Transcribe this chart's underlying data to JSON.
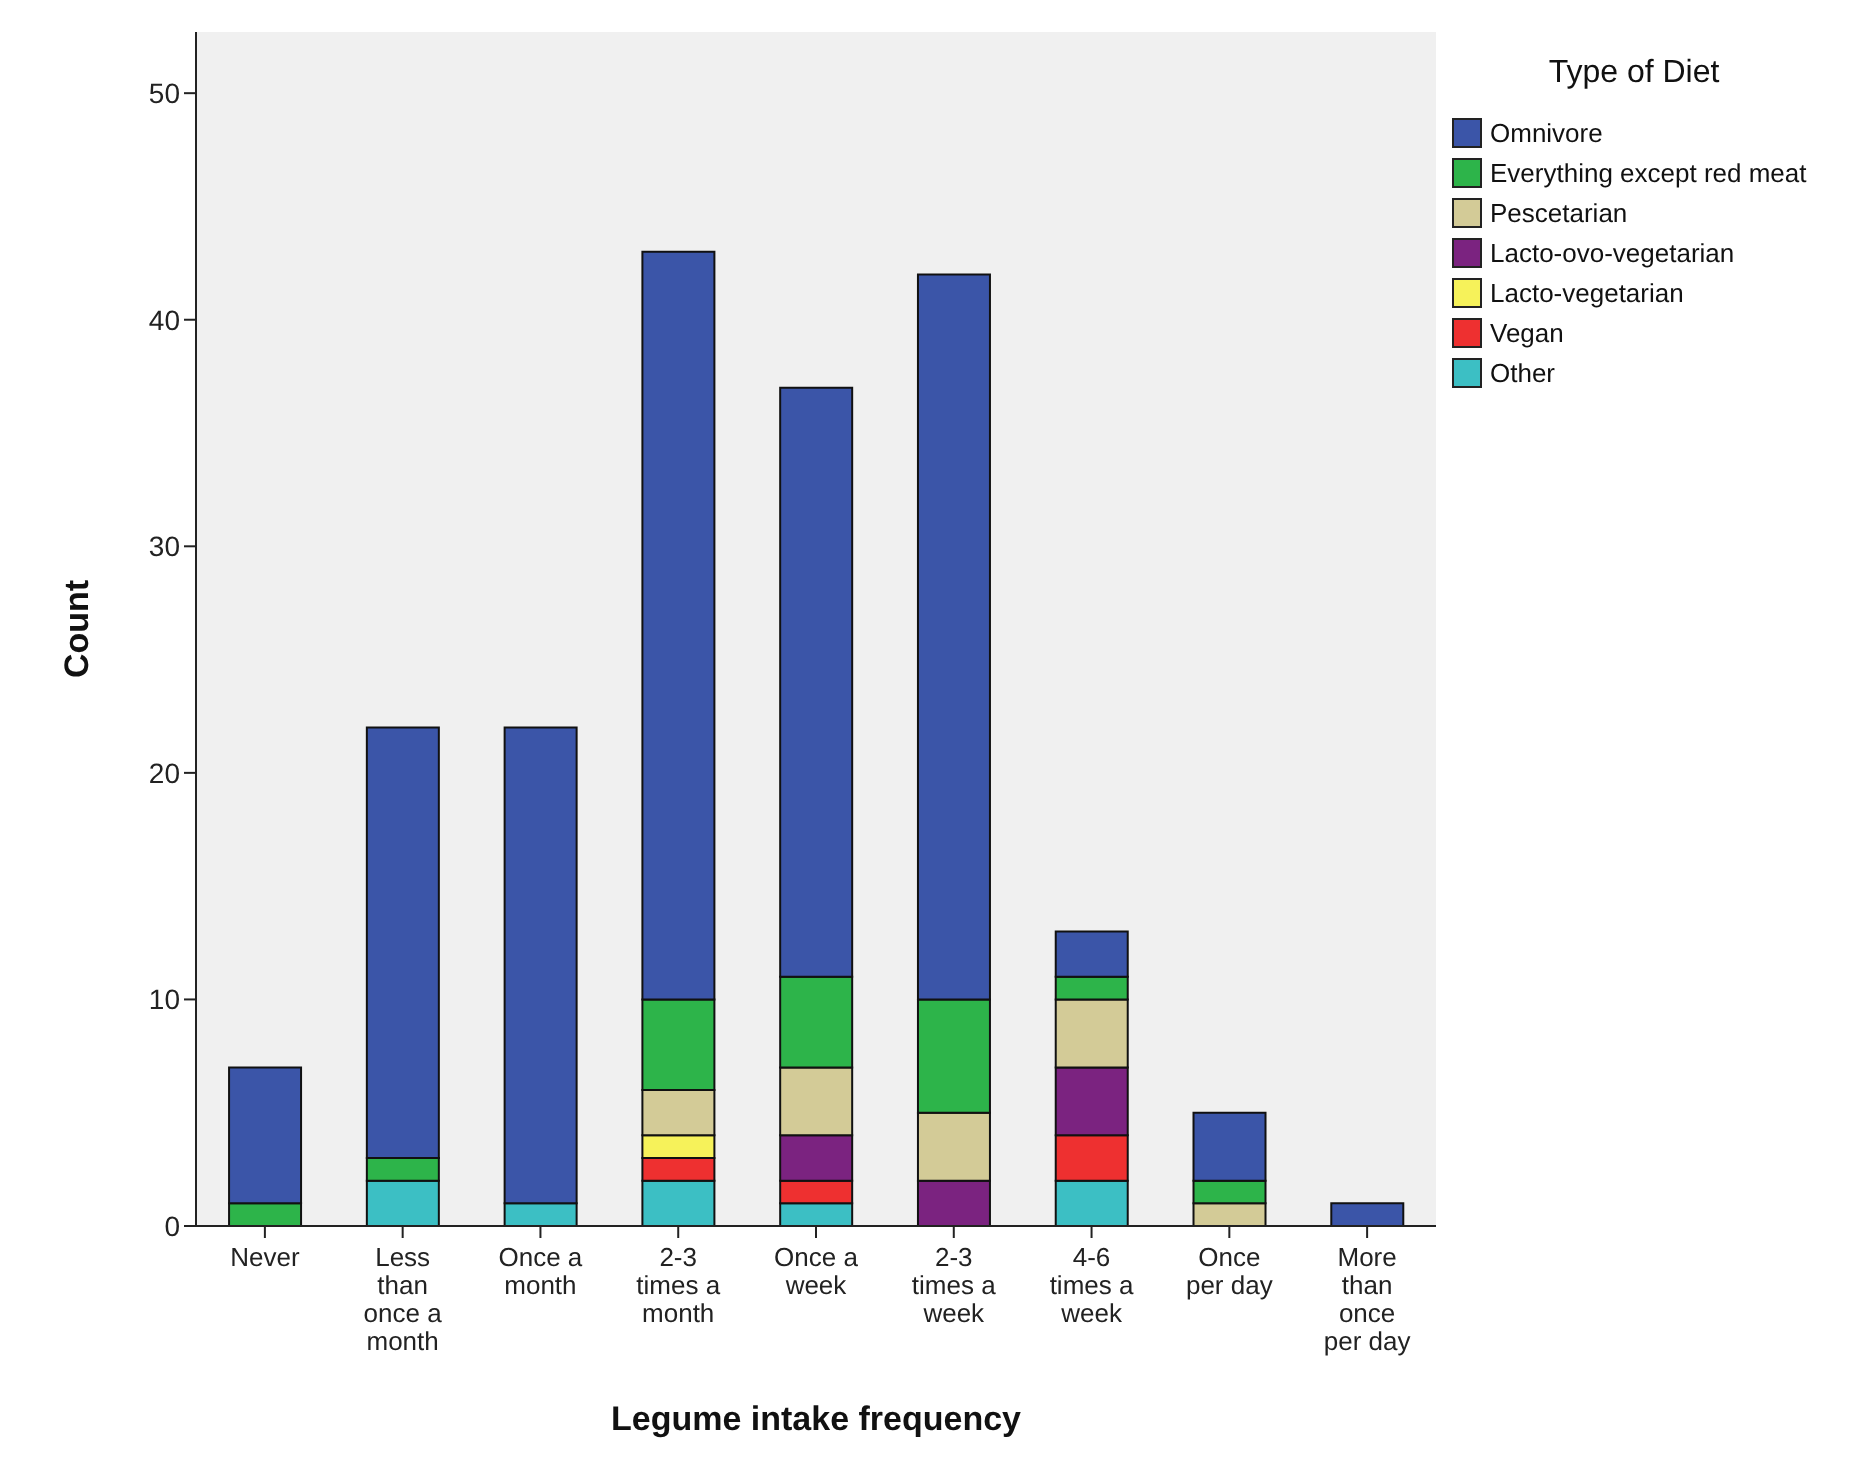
{
  "chart_data": {
    "type": "bar",
    "stacked": true,
    "xlabel": "Legume intake frequency",
    "ylabel": "Count",
    "legend_title": "Type of Diet",
    "categories": [
      "Never",
      "Less than once a month",
      "Once a month",
      "2-3 times a month",
      "Once a week",
      "2-3 times a week",
      "4-6 times a week",
      "Once per day",
      "More than once per day"
    ],
    "series": [
      {
        "name": "Other",
        "color": "#3cbfc4",
        "values": [
          0,
          2,
          1,
          2,
          1,
          0,
          2,
          0,
          0
        ]
      },
      {
        "name": "Vegan",
        "color": "#ee3030",
        "values": [
          0,
          0,
          0,
          1,
          1,
          0,
          2,
          0,
          0
        ]
      },
      {
        "name": "Lacto-vegetarian",
        "color": "#f6f25a",
        "values": [
          0,
          0,
          0,
          1,
          0,
          0,
          0,
          0,
          0
        ]
      },
      {
        "name": "Lacto-ovo-vegetarian",
        "color": "#7b2380",
        "values": [
          0,
          0,
          0,
          0,
          2,
          2,
          3,
          0,
          0
        ]
      },
      {
        "name": "Pescetarian",
        "color": "#d3cb97",
        "values": [
          0,
          0,
          0,
          2,
          3,
          3,
          3,
          1,
          0
        ]
      },
      {
        "name": "Everything except red meat",
        "color": "#2db44a",
        "values": [
          1,
          1,
          0,
          4,
          4,
          5,
          1,
          1,
          0
        ]
      },
      {
        "name": "Omnivore",
        "color": "#3b55a8",
        "values": [
          6,
          19,
          21,
          33,
          26,
          32,
          2,
          3,
          1
        ]
      }
    ],
    "ylim": [
      0,
      52.7
    ],
    "yticks": [
      0,
      10,
      20,
      30,
      40,
      50
    ],
    "grid": false,
    "legend": "right"
  }
}
